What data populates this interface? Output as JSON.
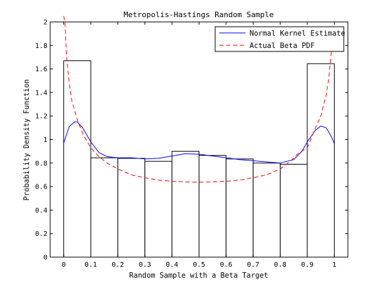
{
  "chart_data": {
    "type": "bar",
    "title": "Metropolis-Hastings Random Sample",
    "xlabel": "Random Sample with a Beta Target",
    "ylabel": "Probability Density Function",
    "xlim": [
      -0.05,
      1.05
    ],
    "ylim": [
      0,
      2
    ],
    "xticks": [
      "0",
      "0.1",
      "0.2",
      "0.3",
      "0.4",
      "0.5",
      "0.6",
      "0.7",
      "0.8",
      "0.9",
      "1"
    ],
    "yticks": [
      "0",
      "0.2",
      "0.4",
      "0.6",
      "0.8",
      "1",
      "1.2",
      "1.4",
      "1.6",
      "1.8",
      "2"
    ],
    "grid": false,
    "legend_position": "top-right",
    "histogram": {
      "bin_edges": [
        0,
        0.1,
        0.2,
        0.3,
        0.4,
        0.5,
        0.6,
        0.7,
        0.8,
        0.9,
        1.0
      ],
      "values": [
        1.67,
        0.845,
        0.84,
        0.815,
        0.9,
        0.865,
        0.835,
        0.8,
        0.79,
        1.645
      ]
    },
    "series": [
      {
        "name": "Normal Kernel Estimate",
        "color": "#0000ff",
        "style": "solid",
        "x": [
          0.0,
          0.02,
          0.04,
          0.05,
          0.07,
          0.1,
          0.13,
          0.16,
          0.2,
          0.25,
          0.3,
          0.35,
          0.4,
          0.45,
          0.5,
          0.55,
          0.6,
          0.65,
          0.7,
          0.75,
          0.8,
          0.85,
          0.88,
          0.9,
          0.93,
          0.95,
          0.97,
          0.99,
          1.0
        ],
        "y": [
          0.97,
          1.11,
          1.15,
          1.15,
          1.1,
          0.98,
          0.89,
          0.855,
          0.845,
          0.845,
          0.835,
          0.84,
          0.86,
          0.88,
          0.875,
          0.86,
          0.845,
          0.83,
          0.82,
          0.81,
          0.8,
          0.83,
          0.9,
          0.98,
          1.08,
          1.115,
          1.1,
          1.02,
          0.965
        ]
      },
      {
        "name": "Actual Beta PDF",
        "color": "#ff0000",
        "style": "dashed",
        "x": [
          0.0,
          0.005,
          0.01,
          0.02,
          0.03,
          0.05,
          0.07,
          0.1,
          0.13,
          0.16,
          0.2,
          0.25,
          0.3,
          0.35,
          0.4,
          0.45,
          0.5,
          0.55,
          0.6,
          0.65,
          0.7,
          0.75,
          0.8,
          0.84,
          0.87,
          0.9,
          0.93,
          0.95,
          0.97,
          0.98,
          0.99
        ],
        "y": [
          2.05,
          1.98,
          1.72,
          1.48,
          1.33,
          1.17,
          1.05,
          0.93,
          0.855,
          0.8,
          0.75,
          0.7,
          0.675,
          0.655,
          0.645,
          0.64,
          0.638,
          0.64,
          0.645,
          0.655,
          0.675,
          0.7,
          0.75,
          0.82,
          0.89,
          0.93,
          1.1,
          1.2,
          1.38,
          1.53,
          1.77
        ]
      }
    ]
  }
}
